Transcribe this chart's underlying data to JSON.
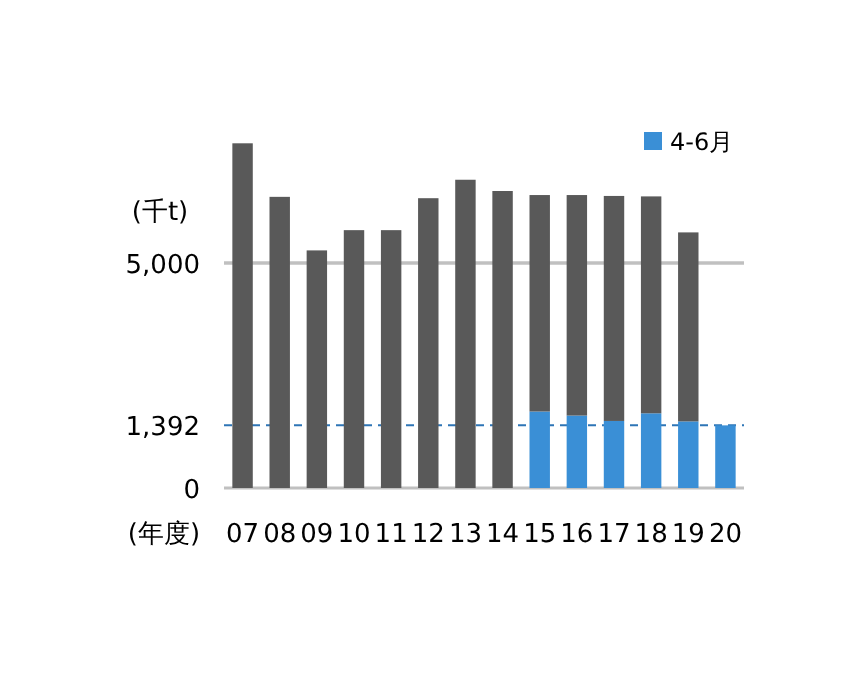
{
  "chart_data": {
    "type": "bar",
    "stacked": true,
    "ylabel": "(千t)",
    "xlabel": "(年度)",
    "categories": [
      "07",
      "08",
      "09",
      "10",
      "11",
      "12",
      "13",
      "14",
      "15",
      "16",
      "17",
      "18",
      "19",
      "20"
    ],
    "series": [
      {
        "name": "4-6月",
        "color": "#3a8fd6",
        "values": [
          null,
          null,
          null,
          null,
          null,
          null,
          null,
          null,
          1700,
          1610,
          1490,
          1660,
          1480,
          1392
        ]
      },
      {
        "color": "#595959",
        "values": [
          7660,
          6470,
          5280,
          5730,
          5730,
          6440,
          6850,
          6600,
          4810,
          4900,
          5000,
          4820,
          4200,
          null
        ]
      }
    ],
    "ylim": [
      0,
      8000
    ],
    "yticks": [
      0,
      {
        "value": 1392,
        "label": "1,392"
      },
      {
        "value": 5000,
        "label": "5,000"
      }
    ],
    "ref_lines": [
      {
        "axis": "y",
        "value": 5000,
        "color": "#c0c0c0",
        "line_style": "solid"
      },
      {
        "axis": "y",
        "value": 1392,
        "color": "#2e75b6",
        "line_style": "dashed"
      }
    ],
    "legend": "top right"
  }
}
